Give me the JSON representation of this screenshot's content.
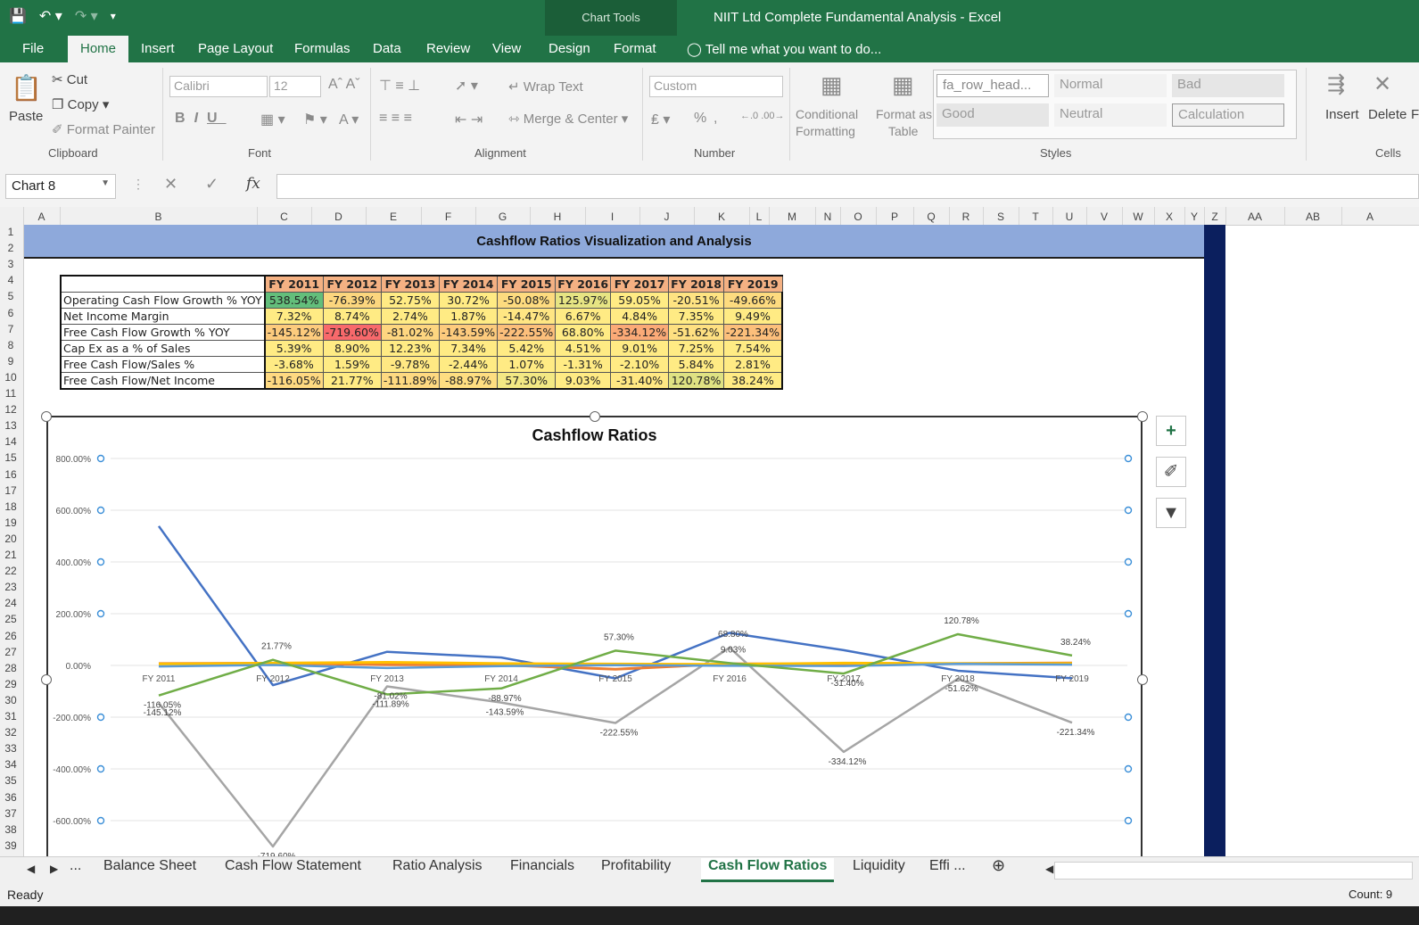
{
  "window": {
    "title": "NIIT Ltd Complete Fundamental Analysis - Excel",
    "chart_tools": "Chart Tools"
  },
  "ribbon_tabs": [
    "File",
    "Home",
    "Insert",
    "Page Layout",
    "Formulas",
    "Data",
    "Review",
    "View",
    "Design",
    "Format"
  ],
  "tell_me": "Tell me what you want to do...",
  "clipboard": {
    "paste": "Paste",
    "cut": "Cut",
    "copy": "Copy",
    "format_painter": "Format Painter",
    "group": "Clipboard"
  },
  "font": {
    "name": "Calibri",
    "size": "12",
    "group": "Font"
  },
  "alignment": {
    "wrap": "Wrap Text",
    "merge": "Merge & Center",
    "group": "Alignment"
  },
  "number": {
    "format": "Custom",
    "percent": "%",
    "comma": ",",
    "group": "Number"
  },
  "styles": {
    "conditional": "Conditional",
    "formatting": "Formatting",
    "format_as": "Format as",
    "table": "Table",
    "cells": [
      "fa_row_head...",
      "Normal",
      "Bad",
      "Good",
      "Neutral",
      "Calculation"
    ],
    "group": "Styles"
  },
  "cells": {
    "insert": "Insert",
    "delete": "Delete",
    "extra": "F",
    "group": "Cells"
  },
  "name_box": "Chart 8",
  "fx": "fx",
  "columns": [
    "A",
    "B",
    "C",
    "D",
    "E",
    "F",
    "G",
    "H",
    "I",
    "J",
    "K",
    "L",
    "M",
    "N",
    "O",
    "P",
    "Q",
    "R",
    "S",
    "T",
    "U",
    "V",
    "W",
    "X",
    "Y",
    "Z",
    "AA",
    "AB",
    "A"
  ],
  "rows": [
    "1",
    "2",
    "3",
    "4",
    "5",
    "6",
    "7",
    "8",
    "9",
    "10",
    "11",
    "12",
    "13",
    "14",
    "15",
    "16",
    "17",
    "18",
    "19",
    "20",
    "21",
    "22",
    "23",
    "24",
    "25",
    "26",
    "27",
    "28",
    "29",
    "30",
    "31",
    "32",
    "33",
    "34",
    "35",
    "36",
    "37",
    "38",
    "39"
  ],
  "banner": "Cashflow Ratios Visualization and Analysis",
  "table": {
    "headers": [
      "FY 2011",
      "FY 2012",
      "FY 2013",
      "FY 2014",
      "FY 2015",
      "FY 2016",
      "FY 2017",
      "FY 2018",
      "FY 2019"
    ],
    "rows": [
      {
        "label": "Operating Cash Flow Growth % YOY",
        "values": [
          "538.54%",
          "-76.39%",
          "52.75%",
          "30.72%",
          "-50.08%",
          "125.97%",
          "59.05%",
          "-20.51%",
          "-49.66%"
        ],
        "colors": [
          "#63be7b",
          "#fcd67e",
          "#ffeb84",
          "#ffeb84",
          "#fddb7f",
          "#e6e483",
          "#ffeb84",
          "#fee382",
          "#fddb7f"
        ]
      },
      {
        "label": "Net Income Margin",
        "values": [
          "7.32%",
          "8.74%",
          "2.74%",
          "1.87%",
          "-14.47%",
          "6.67%",
          "4.84%",
          "7.35%",
          "9.49%"
        ],
        "colors": [
          "#ffeb84",
          "#ffeb84",
          "#ffeb84",
          "#ffeb84",
          "#ffe683",
          "#ffeb84",
          "#ffeb84",
          "#ffeb84",
          "#ffeb84"
        ]
      },
      {
        "label": "Free Cash Flow Growth % YOY",
        "values": [
          "-145.12%",
          "-719.60%",
          "-81.02%",
          "-143.59%",
          "-222.55%",
          "68.80%",
          "-334.12%",
          "-51.62%",
          "-221.34%"
        ],
        "colors": [
          "#fdcb7d",
          "#f8696b",
          "#fed680",
          "#fdcb7d",
          "#fcbf7b",
          "#ffeb84",
          "#fbaa77",
          "#fee081",
          "#fcbf7b"
        ]
      },
      {
        "label": "Cap Ex as a % of Sales",
        "values": [
          "5.39%",
          "8.90%",
          "12.23%",
          "7.34%",
          "5.42%",
          "4.51%",
          "9.01%",
          "7.25%",
          "7.54%"
        ],
        "colors": [
          "#ffeb84",
          "#ffeb84",
          "#ffeb84",
          "#ffeb84",
          "#ffeb84",
          "#ffeb84",
          "#ffeb84",
          "#ffeb84",
          "#ffeb84"
        ]
      },
      {
        "label": "Free Cash Flow/Sales %",
        "values": [
          "-3.68%",
          "1.59%",
          "-9.78%",
          "-2.44%",
          "1.07%",
          "-1.31%",
          "-2.10%",
          "5.84%",
          "2.81%"
        ],
        "colors": [
          "#ffeb84",
          "#ffeb84",
          "#ffe883",
          "#ffeb84",
          "#ffeb84",
          "#ffeb84",
          "#ffeb84",
          "#ffeb84",
          "#ffeb84"
        ]
      },
      {
        "label": "Free Cash Flow/Net Income",
        "values": [
          "-116.05%",
          "21.77%",
          "-111.89%",
          "-88.97%",
          "57.30%",
          "9.03%",
          "-31.40%",
          "120.78%",
          "38.24%"
        ],
        "colors": [
          "#fed981",
          "#ffeb84",
          "#fed981",
          "#fede81",
          "#f3e884",
          "#ffeb84",
          "#ffe883",
          "#dfe283",
          "#ffeb84"
        ]
      }
    ]
  },
  "chart_data": {
    "type": "line",
    "title": "Cashflow Ratios",
    "categories": [
      "FY 2011",
      "FY 2012",
      "FY 2013",
      "FY 2014",
      "FY 2015",
      "FY 2016",
      "FY 2017",
      "FY 2018",
      "FY 2019"
    ],
    "ylim": [
      -700,
      800
    ],
    "yticks": [
      "800.00%",
      "600.00%",
      "400.00%",
      "200.00%",
      "0.00%",
      "-200.00%",
      "-400.00%",
      "-600.00%"
    ],
    "grid": true,
    "series": [
      {
        "values": [
          538.54,
          -76.39,
          52.75,
          30.72,
          -50.08,
          125.97,
          59.05,
          -20.51,
          -49.66
        ],
        "color": "#4472c4"
      },
      {
        "values": [
          7.32,
          8.74,
          2.74,
          1.87,
          -14.47,
          6.67,
          4.84,
          7.35,
          9.49
        ],
        "color": "#ed7d31"
      },
      {
        "values": [
          -145.12,
          -719.6,
          -81.02,
          -143.59,
          -222.55,
          68.8,
          -334.12,
          -51.62,
          -221.34
        ],
        "color": "#a5a5a5",
        "labels": [
          "-145.12%",
          "-719.60%",
          "-81.02%",
          "-143.59%",
          "-222.55%",
          "68.80%",
          "-334.12%",
          "-51.62%",
          "-221.34%"
        ]
      },
      {
        "values": [
          5.39,
          8.9,
          12.23,
          7.34,
          5.42,
          4.51,
          9.01,
          7.25,
          7.54
        ],
        "color": "#ffc000"
      },
      {
        "values": [
          -3.68,
          1.59,
          -9.78,
          -2.44,
          1.07,
          -1.31,
          -2.1,
          5.84,
          2.81
        ],
        "color": "#5b9bd5"
      },
      {
        "values": [
          -116.05,
          21.77,
          -111.89,
          -88.97,
          57.3,
          9.03,
          -31.4,
          120.78,
          38.24
        ],
        "color": "#70ad47",
        "labels": [
          "-116.05%",
          "21.77%",
          "-111.89%",
          "-88.97%",
          "57.30%",
          "9.03%",
          "-31.40%",
          "120.78%",
          "38.24%"
        ]
      }
    ]
  },
  "sheet_tabs": [
    "...",
    "Balance Sheet",
    "Cash Flow Statement",
    "Ratio Analysis",
    "Financials",
    "Profitability",
    "Cash Flow Ratios",
    "Liquidity",
    "Effi ..."
  ],
  "status": {
    "ready": "Ready",
    "count": "Count: 9"
  }
}
